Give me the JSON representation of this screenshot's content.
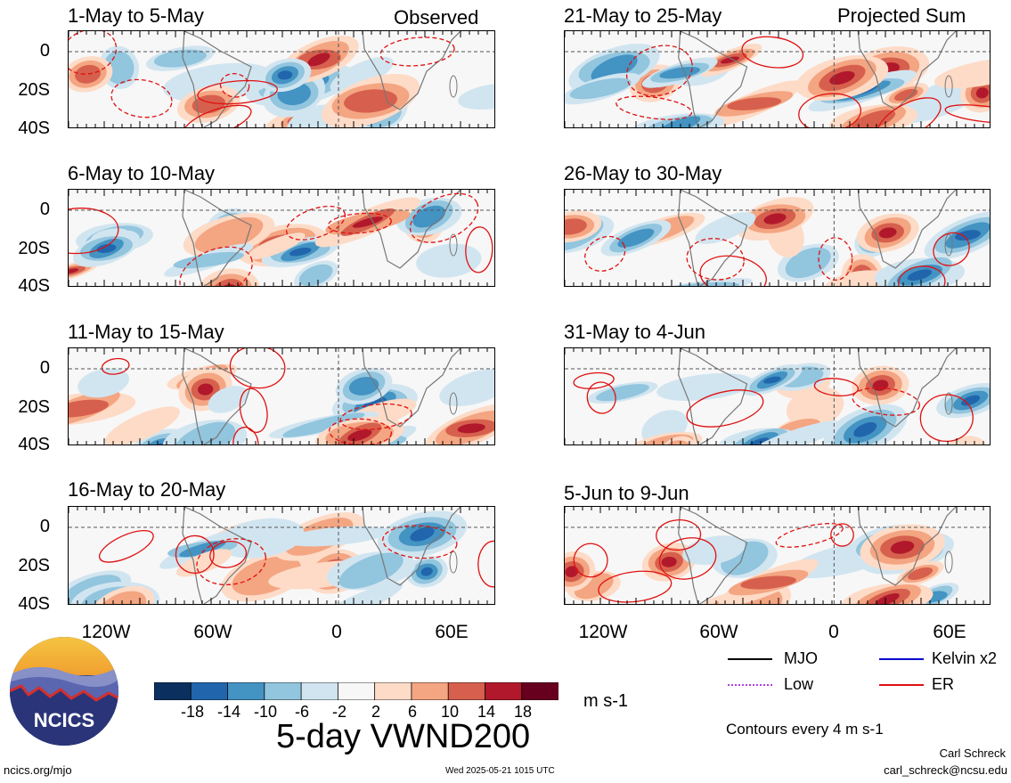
{
  "panels": {
    "observed_label": "Observed",
    "projected_label": "Projected Sum",
    "left": [
      {
        "title": "1-May to 5-May"
      },
      {
        "title": "6-May to 10-May"
      },
      {
        "title": "11-May to 15-May"
      },
      {
        "title": "16-May to 20-May"
      }
    ],
    "right": [
      {
        "title": "21-May to 25-May"
      },
      {
        "title": "26-May to 30-May"
      },
      {
        "title": "31-May to 4-Jun"
      },
      {
        "title": "5-Jun to 9-Jun"
      }
    ]
  },
  "axes": {
    "y_ticks": [
      "0",
      "20S",
      "40S"
    ],
    "x_ticks": [
      "120W",
      "60W",
      "0",
      "60E"
    ]
  },
  "colorbar": {
    "labels": [
      "-18",
      "-14",
      "-10",
      "-6",
      "-2",
      "2",
      "6",
      "10",
      "14",
      "18"
    ],
    "colors": [
      "#0b2f5e",
      "#2166ac",
      "#4393c3",
      "#92c5de",
      "#d1e5f0",
      "#f7f7f7",
      "#fddbc7",
      "#f4a582",
      "#d6604d",
      "#b2182b",
      "#67001f"
    ],
    "units": "m s-1"
  },
  "title": "5-day VWND200",
  "legend": {
    "items": [
      {
        "label": "MJO",
        "color": "#000000"
      },
      {
        "label": "Kelvin x2",
        "color": "#0000cc"
      },
      {
        "label": "Low",
        "color": "#b040e0"
      },
      {
        "label": "ER",
        "color": "#e01010"
      }
    ],
    "contour_note": "Contours every 4 m s-1"
  },
  "footer": {
    "url": "ncics.org/mjo",
    "timestamp": "Wed 2025-05-21 1015 UTC",
    "author": "Carl Schreck",
    "email": "carl_schreck@ncsu.edu"
  },
  "logo": {
    "text": "NCICS"
  }
}
